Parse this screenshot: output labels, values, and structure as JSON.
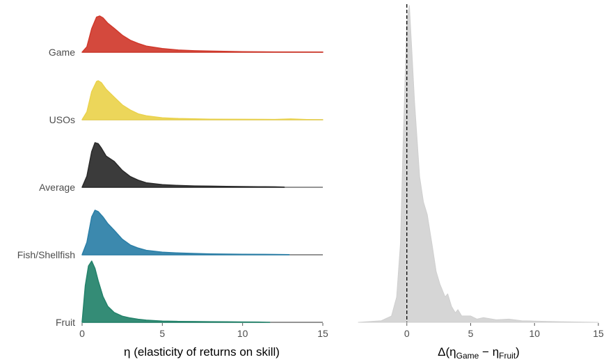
{
  "chart_data": [
    {
      "type": "ridgeline-density",
      "xlabel": "η (elasticity of returns on skill)",
      "xlim": [
        0,
        15
      ],
      "xticks": [
        0,
        5,
        10,
        15
      ],
      "grid": false,
      "categories": [
        "Game",
        "USOs",
        "Average",
        "Fish/Shellfish",
        "Fruit"
      ],
      "series": [
        {
          "name": "Game",
          "color": "#d0392c",
          "x": [
            0,
            0.3,
            0.6,
            0.9,
            1.1,
            1.3,
            1.6,
            2,
            2.5,
            3,
            3.5,
            4,
            5,
            6,
            7,
            8,
            10,
            12,
            15
          ],
          "density": [
            0,
            0.15,
            0.65,
            0.97,
            1,
            0.95,
            0.8,
            0.66,
            0.47,
            0.33,
            0.24,
            0.17,
            0.1,
            0.06,
            0.04,
            0.03,
            0.015,
            0.008,
            0.004
          ]
        },
        {
          "name": "USOs",
          "color": "#ead24c",
          "x": [
            0,
            0.3,
            0.6,
            0.9,
            1.0,
            1.2,
            1.5,
            2,
            2.5,
            3,
            3.5,
            4,
            5,
            6,
            8,
            10,
            12,
            13,
            14,
            15
          ],
          "density": [
            0,
            0.2,
            0.72,
            0.98,
            1,
            0.95,
            0.78,
            0.58,
            0.38,
            0.25,
            0.15,
            0.1,
            0.05,
            0.03,
            0.015,
            0.01,
            0.008,
            0.02,
            0.005,
            0
          ]
        },
        {
          "name": "Average",
          "color": "#2a2a2a",
          "x": [
            0,
            0.3,
            0.6,
            0.8,
            1.0,
            1.2,
            1.5,
            2,
            2.5,
            3,
            3.5,
            4,
            5,
            6,
            7,
            8,
            9,
            10,
            11,
            12,
            12.6
          ],
          "density": [
            0,
            0.25,
            0.8,
            1,
            0.98,
            0.88,
            0.7,
            0.58,
            0.38,
            0.24,
            0.16,
            0.1,
            0.06,
            0.04,
            0.03,
            0.025,
            0.02,
            0.015,
            0.012,
            0.01,
            0.005
          ]
        },
        {
          "name": "Fish/Shellfish",
          "color": "#2b7fa7",
          "x": [
            0,
            0.3,
            0.6,
            0.8,
            1.0,
            1.3,
            1.6,
            2,
            2.5,
            3,
            3.5,
            4,
            5,
            6,
            7,
            8,
            10,
            12,
            12.9
          ],
          "density": [
            0,
            0.28,
            0.85,
            1,
            0.97,
            0.85,
            0.7,
            0.55,
            0.35,
            0.22,
            0.15,
            0.1,
            0.06,
            0.04,
            0.03,
            0.02,
            0.012,
            0.008,
            0.004
          ]
        },
        {
          "name": "Fruit",
          "color": "#23826a",
          "x": [
            0,
            0.2,
            0.4,
            0.6,
            0.8,
            1,
            1.3,
            1.6,
            2,
            2.5,
            3,
            3.5,
            4,
            5,
            6,
            7,
            8,
            9,
            10,
            11,
            11.7
          ],
          "density": [
            0,
            0.6,
            0.92,
            1,
            0.88,
            0.68,
            0.42,
            0.26,
            0.16,
            0.1,
            0.07,
            0.05,
            0.035,
            0.02,
            0.015,
            0.012,
            0.01,
            0.008,
            0.006,
            0.005,
            0
          ]
        }
      ]
    },
    {
      "type": "density",
      "xlabel": "Δ(ηGame − ηFruit)",
      "xlabel_parts": {
        "prefix": "Δ(η",
        "sub1": "Game",
        "minus": " − η",
        "sub2": "Fruit",
        "suffix": ")"
      },
      "xlim": [
        -3.8,
        15
      ],
      "xticks": [
        0,
        5,
        10,
        15
      ],
      "grid": false,
      "vline": {
        "x": 0,
        "style": "dashed"
      },
      "series": [
        {
          "name": "",
          "color": "#d6d6d6",
          "x": [
            -3.8,
            -2,
            -1.2,
            -0.8,
            -0.5,
            -0.3,
            0,
            0.2,
            0.4,
            0.6,
            0.8,
            1,
            1.3,
            1.6,
            2,
            2.3,
            2.6,
            3,
            3.2,
            3.5,
            3.8,
            4,
            4.3,
            5,
            5.5,
            6,
            7,
            8,
            9,
            10,
            12,
            15
          ],
          "density": [
            0,
            0.005,
            0.02,
            0.08,
            0.25,
            0.55,
            0.95,
            1,
            0.85,
            0.7,
            0.58,
            0.46,
            0.38,
            0.34,
            0.24,
            0.16,
            0.12,
            0.08,
            0.09,
            0.05,
            0.03,
            0.04,
            0.02,
            0.02,
            0.01,
            0.015,
            0.008,
            0.01,
            0.005,
            0.004,
            0.002,
            0
          ]
        }
      ]
    }
  ]
}
